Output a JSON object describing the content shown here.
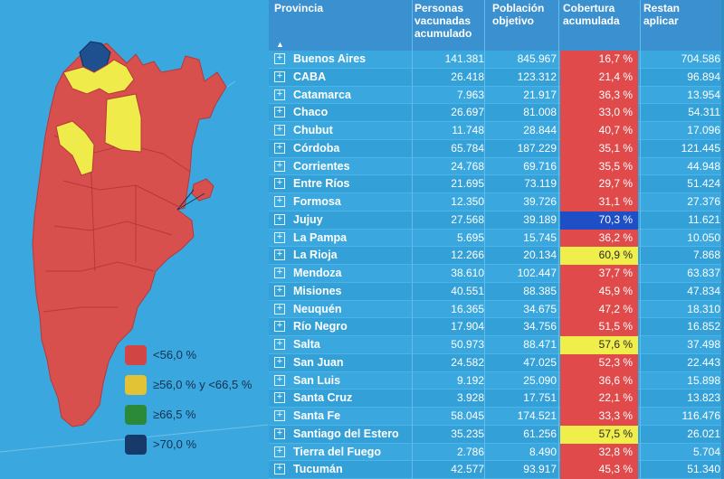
{
  "colors": {
    "background": "#3aa8df",
    "low": "#e04a4a",
    "mid": "#f0ee4a",
    "high": "#2f9a3a",
    "very_high": "#1f4fc6"
  },
  "legend": [
    {
      "label": "<56,0 %",
      "color": "#d24545"
    },
    {
      "label": "≥56,0 %  y <66,5 %",
      "color": "#e2c335"
    },
    {
      "label": "≥66,5 %",
      "color": "#2a8a3a"
    },
    {
      "label": ">70,0 %",
      "color": "#163a6a"
    }
  ],
  "table": {
    "headers": {
      "province": "Provincia",
      "vaccinated": [
        "Personas",
        "vacunadas",
        "acumulado"
      ],
      "population": [
        "Población",
        "objetivo"
      ],
      "coverage": [
        "Cobertura",
        "acumulada"
      ],
      "remaining": [
        "Restan",
        "aplicar"
      ]
    },
    "sort_icon": "sort-asc-icon",
    "rows": [
      {
        "name": "Buenos Aires",
        "vaccinated": "141.381",
        "population": "845.967",
        "coverage": "16,7 %",
        "remaining": "704.586",
        "band": "low"
      },
      {
        "name": "CABA",
        "vaccinated": "26.418",
        "population": "123.312",
        "coverage": "21,4 %",
        "remaining": "96.894",
        "band": "low"
      },
      {
        "name": "Catamarca",
        "vaccinated": "7.963",
        "population": "21.917",
        "coverage": "36,3 %",
        "remaining": "13.954",
        "band": "low"
      },
      {
        "name": "Chaco",
        "vaccinated": "26.697",
        "population": "81.008",
        "coverage": "33,0 %",
        "remaining": "54.311",
        "band": "low"
      },
      {
        "name": "Chubut",
        "vaccinated": "11.748",
        "population": "28.844",
        "coverage": "40,7 %",
        "remaining": "17.096",
        "band": "low"
      },
      {
        "name": "Córdoba",
        "vaccinated": "65.784",
        "population": "187.229",
        "coverage": "35,1 %",
        "remaining": "121.445",
        "band": "low"
      },
      {
        "name": "Corrientes",
        "vaccinated": "24.768",
        "population": "69.716",
        "coverage": "35,5 %",
        "remaining": "44.948",
        "band": "low"
      },
      {
        "name": "Entre Ríos",
        "vaccinated": "21.695",
        "population": "73.119",
        "coverage": "29,7 %",
        "remaining": "51.424",
        "band": "low"
      },
      {
        "name": "Formosa",
        "vaccinated": "12.350",
        "population": "39.726",
        "coverage": "31,1 %",
        "remaining": "27.376",
        "band": "low"
      },
      {
        "name": "Jujuy",
        "vaccinated": "27.568",
        "population": "39.189",
        "coverage": "70,3 %",
        "remaining": "11.621",
        "band": "very_high"
      },
      {
        "name": "La Pampa",
        "vaccinated": "5.695",
        "population": "15.745",
        "coverage": "36,2 %",
        "remaining": "10.050",
        "band": "low"
      },
      {
        "name": "La Rioja",
        "vaccinated": "12.266",
        "population": "20.134",
        "coverage": "60,9 %",
        "remaining": "7.868",
        "band": "mid"
      },
      {
        "name": "Mendoza",
        "vaccinated": "38.610",
        "population": "102.447",
        "coverage": "37,7 %",
        "remaining": "63.837",
        "band": "low"
      },
      {
        "name": "Misiones",
        "vaccinated": "40.551",
        "population": "88.385",
        "coverage": "45,9 %",
        "remaining": "47.834",
        "band": "low"
      },
      {
        "name": "Neuquén",
        "vaccinated": "16.365",
        "population": "34.675",
        "coverage": "47,2 %",
        "remaining": "18.310",
        "band": "low"
      },
      {
        "name": "Río Negro",
        "vaccinated": "17.904",
        "population": "34.756",
        "coverage": "51,5 %",
        "remaining": "16.852",
        "band": "low"
      },
      {
        "name": "Salta",
        "vaccinated": "50.973",
        "population": "88.471",
        "coverage": "57,6 %",
        "remaining": "37.498",
        "band": "mid"
      },
      {
        "name": "San Juan",
        "vaccinated": "24.582",
        "population": "47.025",
        "coverage": "52,3 %",
        "remaining": "22.443",
        "band": "low"
      },
      {
        "name": "San Luis",
        "vaccinated": "9.192",
        "population": "25.090",
        "coverage": "36,6 %",
        "remaining": "15.898",
        "band": "low"
      },
      {
        "name": "Santa Cruz",
        "vaccinated": "3.928",
        "population": "17.751",
        "coverage": "22,1 %",
        "remaining": "13.823",
        "band": "low"
      },
      {
        "name": "Santa Fe",
        "vaccinated": "58.045",
        "population": "174.521",
        "coverage": "33,3 %",
        "remaining": "116.476",
        "band": "low"
      },
      {
        "name": "Santiago del Estero",
        "vaccinated": "35.235",
        "population": "61.256",
        "coverage": "57,5 %",
        "remaining": "26.021",
        "band": "mid"
      },
      {
        "name": "Tierra del Fuego",
        "vaccinated": "2.786",
        "population": "8.490",
        "coverage": "32,8 %",
        "remaining": "5.704",
        "band": "low"
      },
      {
        "name": "Tucumán",
        "vaccinated": "42.577",
        "population": "93.917",
        "coverage": "45,3 %",
        "remaining": "51.340",
        "band": "low"
      }
    ]
  }
}
